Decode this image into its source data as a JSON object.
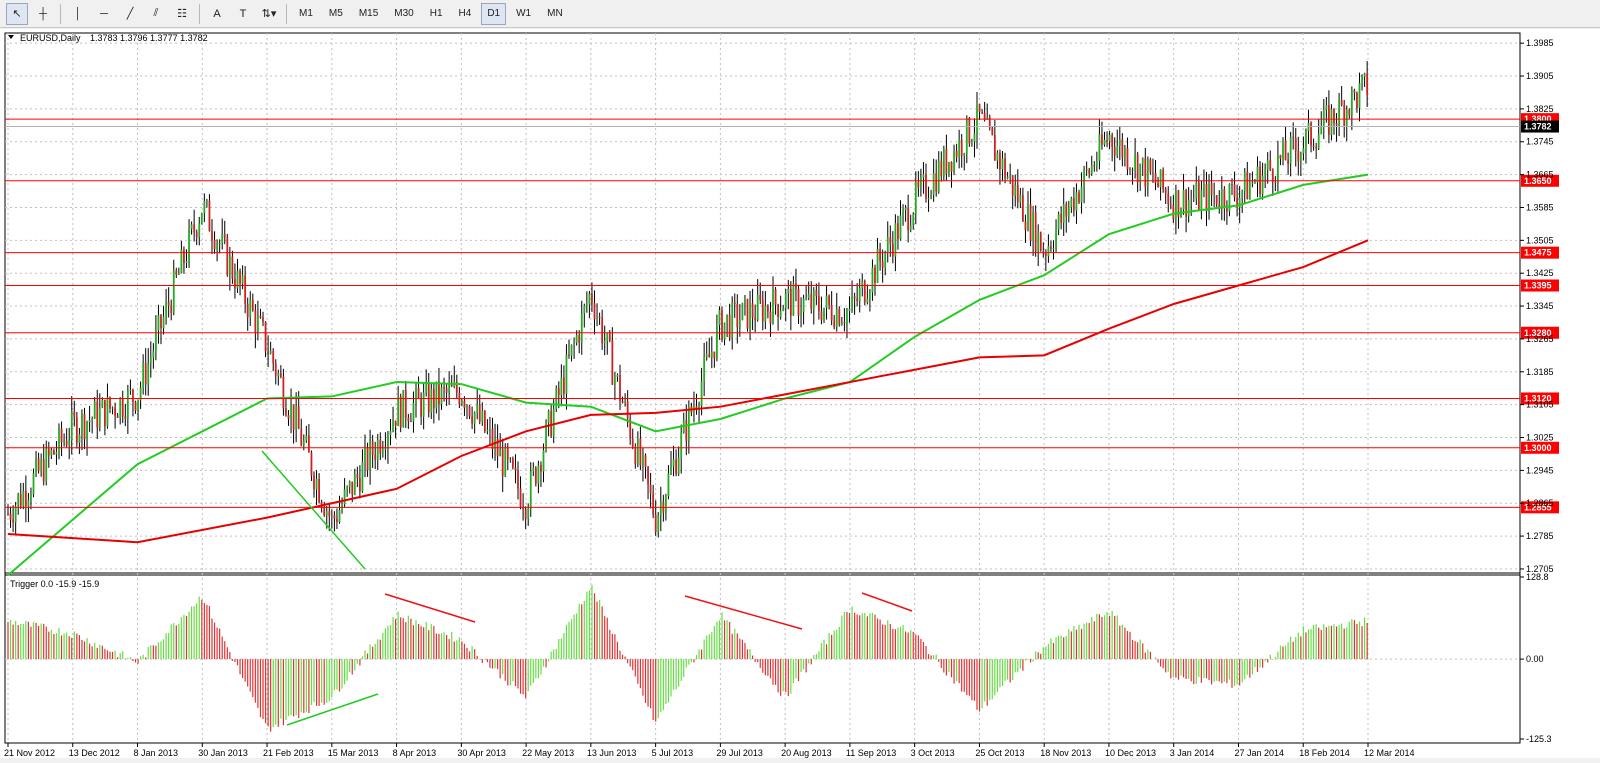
{
  "toolbar": {
    "tools": [
      {
        "name": "cursor-icon",
        "glyph": "↖"
      },
      {
        "name": "crosshair-icon",
        "glyph": "┼"
      },
      {
        "name": "vertical-line-icon",
        "glyph": "│"
      },
      {
        "name": "horizontal-line-icon",
        "glyph": "─"
      },
      {
        "name": "trendline-icon",
        "glyph": "╱"
      },
      {
        "name": "equidistant-channel-icon",
        "glyph": "⫽"
      },
      {
        "name": "fibonacci-icon",
        "glyph": "☷"
      },
      {
        "name": "text-icon",
        "glyph": "A"
      },
      {
        "name": "text-label-icon",
        "glyph": "T"
      },
      {
        "name": "arrows-dropdown-icon",
        "glyph": "⇅▾"
      }
    ],
    "timeframes": [
      "M1",
      "M5",
      "M15",
      "M30",
      "H1",
      "H4",
      "D1",
      "W1",
      "MN"
    ],
    "selected_timeframe": "D1"
  },
  "main_chart": {
    "title": "EURUSD,Daily",
    "ohlc": "1.3783 1.3796 1.3777 1.3782",
    "price_ticks": [
      "1.3985",
      "1.3905",
      "1.3825",
      "1.3745",
      "1.3665",
      "1.3585",
      "1.3505",
      "1.3425",
      "1.3345",
      "1.3265",
      "1.3185",
      "1.3105",
      "1.3025",
      "1.2945",
      "1.2865",
      "1.2785",
      "1.2705"
    ],
    "price_min": 1.27,
    "price_max": 1.4,
    "horizontal_levels": [
      "1.3800",
      "1.3650",
      "1.3475",
      "1.3395",
      "1.3280",
      "1.3120",
      "1.3000",
      "1.2855"
    ],
    "current_price_label": "1.3782",
    "level_color": "#ff0000",
    "ma_fast_color": "#22cc22",
    "ma_slow_color": "#e60000"
  },
  "indicator": {
    "title": "Trigger 0.0 -15.9 -15.9",
    "ticks": [
      "128.8",
      "0.00",
      "-125.3"
    ],
    "pos_color": "#66dd44",
    "neg_color": "#dd3333"
  },
  "time_axis": [
    "21 Nov 2012",
    "13 Dec 2012",
    "8 Jan 2013",
    "30 Jan 2013",
    "21 Feb 2013",
    "15 Mar 2013",
    "8 Apr 2013",
    "30 Apr 2013",
    "22 May 2013",
    "13 Jun 2013",
    "5 Jul 2013",
    "29 Jul 2013",
    "20 Aug 2013",
    "11 Sep 2013",
    "3 Oct 2013",
    "25 Oct 2013",
    "18 Nov 2013",
    "10 Dec 2013",
    "3 Jan 2014",
    "27 Jan 2014",
    "18 Feb 2014",
    "12 Mar 2014"
  ],
  "chart_data": {
    "type": "candlestick",
    "symbol": "EURUSD",
    "timeframe": "Daily",
    "ylim": [
      1.27,
      1.4
    ],
    "close_path": [
      {
        "x": "21 Nov 2012",
        "y": 1.284
      },
      {
        "x": "13 Dec 2012",
        "y": 1.305
      },
      {
        "x": "8 Jan 2013",
        "y": 1.313
      },
      {
        "x": "30 Jan 2013",
        "y": 1.359
      },
      {
        "x": "21 Feb 2013",
        "y": 1.325
      },
      {
        "x": "15 Mar 2013",
        "y": 1.282
      },
      {
        "x": "8 Apr 2013",
        "y": 1.309
      },
      {
        "x": "30 Apr 2013",
        "y": 1.314
      },
      {
        "x": "22 May 2013",
        "y": 1.287
      },
      {
        "x": "13 Jun 2013",
        "y": 1.338
      },
      {
        "x": "5 Jul 2013",
        "y": 1.283
      },
      {
        "x": "29 Jul 2013",
        "y": 1.33
      },
      {
        "x": "20 Aug 2013",
        "y": 1.336
      },
      {
        "x": "11 Sep 2013",
        "y": 1.333
      },
      {
        "x": "3 Oct 2013",
        "y": 1.36
      },
      {
        "x": "25 Oct 2013",
        "y": 1.38
      },
      {
        "x": "18 Nov 2013",
        "y": 1.348
      },
      {
        "x": "10 Dec 2013",
        "y": 1.376
      },
      {
        "x": "3 Jan 2014",
        "y": 1.36
      },
      {
        "x": "27 Jan 2014",
        "y": 1.362
      },
      {
        "x": "18 Feb 2014",
        "y": 1.374
      },
      {
        "x": "12 Mar 2014",
        "y": 1.388
      },
      {
        "x": "end",
        "y": 1.3782
      }
    ],
    "ma_fast": [
      {
        "x": "21 Nov 2012",
        "y": 1.269
      },
      {
        "x": "8 Jan 2013",
        "y": 1.296
      },
      {
        "x": "21 Feb 2013",
        "y": 1.312
      },
      {
        "x": "15 Mar 2013",
        "y": 1.3125
      },
      {
        "x": "8 Apr 2013",
        "y": 1.316
      },
      {
        "x": "30 Apr 2013",
        "y": 1.3155
      },
      {
        "x": "22 May 2013",
        "y": 1.311
      },
      {
        "x": "13 Jun 2013",
        "y": 1.31
      },
      {
        "x": "5 Jul 2013",
        "y": 1.304
      },
      {
        "x": "29 Jul 2013",
        "y": 1.307
      },
      {
        "x": "20 Aug 2013",
        "y": 1.312
      },
      {
        "x": "11 Sep 2013",
        "y": 1.316
      },
      {
        "x": "3 Oct 2013",
        "y": 1.327
      },
      {
        "x": "25 Oct 2013",
        "y": 1.336
      },
      {
        "x": "18 Nov 2013",
        "y": 1.342
      },
      {
        "x": "10 Dec 2013",
        "y": 1.352
      },
      {
        "x": "3 Jan 2014",
        "y": 1.357
      },
      {
        "x": "27 Jan 2014",
        "y": 1.359
      },
      {
        "x": "18 Feb 2014",
        "y": 1.364
      },
      {
        "x": "12 Mar 2014",
        "y": 1.3665
      }
    ],
    "ma_slow": [
      {
        "x": "21 Nov 2012",
        "y": 1.279
      },
      {
        "x": "8 Jan 2013",
        "y": 1.277
      },
      {
        "x": "21 Feb 2013",
        "y": 1.283
      },
      {
        "x": "15 Mar 2013",
        "y": 1.2865
      },
      {
        "x": "8 Apr 2013",
        "y": 1.29
      },
      {
        "x": "30 Apr 2013",
        "y": 1.298
      },
      {
        "x": "22 May 2013",
        "y": 1.304
      },
      {
        "x": "13 Jun 2013",
        "y": 1.308
      },
      {
        "x": "5 Jul 2013",
        "y": 1.3085
      },
      {
        "x": "29 Jul 2013",
        "y": 1.31
      },
      {
        "x": "20 Aug 2013",
        "y": 1.313
      },
      {
        "x": "11 Sep 2013",
        "y": 1.316
      },
      {
        "x": "3 Oct 2013",
        "y": 1.319
      },
      {
        "x": "25 Oct 2013",
        "y": 1.322
      },
      {
        "x": "18 Nov 2013",
        "y": 1.3225
      },
      {
        "x": "10 Dec 2013",
        "y": 1.329
      },
      {
        "x": "3 Jan 2014",
        "y": 1.335
      },
      {
        "x": "27 Jan 2014",
        "y": 1.3395
      },
      {
        "x": "18 Feb 2014",
        "y": 1.344
      },
      {
        "x": "12 Mar 2014",
        "y": 1.3505
      }
    ],
    "trigger_path": [
      {
        "x": "21 Nov 2012",
        "y": 60
      },
      {
        "x": "13 Dec 2012",
        "y": 40
      },
      {
        "x": "8 Jan 2013",
        "y": -5
      },
      {
        "x": "30 Jan 2013",
        "y": 100
      },
      {
        "x": "21 Feb 2013",
        "y": -110
      },
      {
        "x": "15 Mar 2013",
        "y": -60
      },
      {
        "x": "8 Apr 2013",
        "y": 70
      },
      {
        "x": "30 Apr 2013",
        "y": 30
      },
      {
        "x": "22 May 2013",
        "y": -60
      },
      {
        "x": "13 Jun 2013",
        "y": 115
      },
      {
        "x": "5 Jul 2013",
        "y": -100
      },
      {
        "x": "29 Jul 2013",
        "y": 70
      },
      {
        "x": "20 Aug 2013",
        "y": -60
      },
      {
        "x": "11 Sep 2013",
        "y": 80
      },
      {
        "x": "3 Oct 2013",
        "y": 40
      },
      {
        "x": "25 Oct 2013",
        "y": -80
      },
      {
        "x": "18 Nov 2013",
        "y": 20
      },
      {
        "x": "10 Dec 2013",
        "y": 75
      },
      {
        "x": "3 Jan 2014",
        "y": -30
      },
      {
        "x": "27 Jan 2014",
        "y": -40
      },
      {
        "x": "18 Feb 2014",
        "y": 45
      },
      {
        "x": "12 Mar 2014",
        "y": 60
      },
      {
        "x": "end",
        "y": -15.9
      }
    ]
  }
}
